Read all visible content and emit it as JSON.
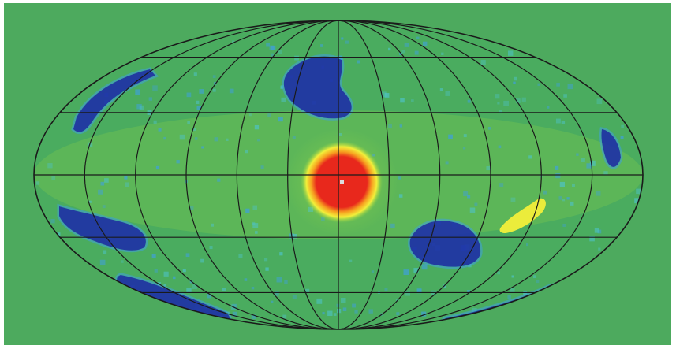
{
  "map": {
    "projection": "Mollweide",
    "background_color": "#4daa5e",
    "ellipse_fill": "#4aac5f",
    "band_fill": "#6cbf52",
    "graticule_color": "#1a1a1a",
    "meridians_deg": [
      -150,
      -120,
      -90,
      -60,
      -30,
      0,
      30,
      60,
      90,
      120,
      150
    ],
    "parallels_deg": [
      -60,
      -30,
      0,
      30,
      60
    ],
    "colormap": [
      "#1e2fa8",
      "#2f55c8",
      "#3fa0e0",
      "#4ec2c8",
      "#4aac5f",
      "#8dd148",
      "#f2ef3a",
      "#f7a020",
      "#e8281c"
    ],
    "hotspot": {
      "lon": 0,
      "lat": 0,
      "level": "max",
      "color": "#e8281c"
    },
    "regions": [
      {
        "name": "northern-blue-patch",
        "level": "low",
        "color": "#1e2fa8"
      },
      {
        "name": "western-blue-arc-north",
        "level": "low",
        "color": "#1e2fa8"
      },
      {
        "name": "western-blue-arc-south",
        "level": "low",
        "color": "#1e2fa8"
      },
      {
        "name": "southern-blue-arc",
        "level": "low",
        "color": "#1e2fa8"
      },
      {
        "name": "southeast-blue-arc",
        "level": "low",
        "color": "#1e2fa8"
      },
      {
        "name": "east-blue-patch",
        "level": "low",
        "color": "#1e2fa8"
      },
      {
        "name": "east-edge-blue-arc",
        "level": "low",
        "color": "#1e2fa8"
      },
      {
        "name": "yellow-streak",
        "level": "high",
        "color": "#f2ef3a"
      }
    ]
  }
}
